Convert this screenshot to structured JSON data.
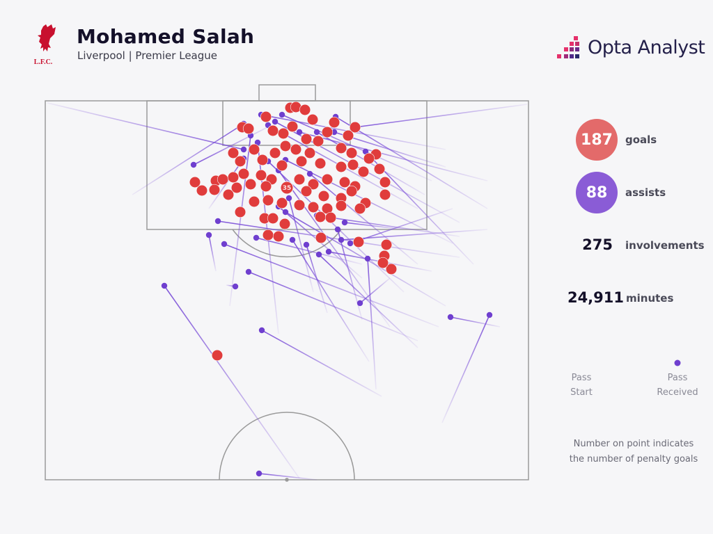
{
  "header": {
    "player": "Mohamed Salah",
    "subtitle": "Liverpool | Premier League",
    "club_crest_text": "L.F.C.",
    "brand": "Opta Analyst"
  },
  "stats": {
    "goals": {
      "value": "187",
      "label": "goals",
      "color": "#e36a6a"
    },
    "assists": {
      "value": "88",
      "label": "assists",
      "color": "#8a5cd6"
    },
    "involvements": {
      "value": "275",
      "label": "involvements"
    },
    "minutes": {
      "value": "24,911",
      "label": "minutes"
    }
  },
  "legend": {
    "start_line1": "Pass",
    "start_line2": "Start",
    "end_line1": "Pass",
    "end_line2": "Received"
  },
  "note": {
    "line1": "Number on point indicates",
    "line2": "the number of penalty goals"
  },
  "chart_data": {
    "type": "scatter",
    "description_units": "pitch metres: x across the pitch from left touchline, y from the goal line",
    "pitch": {
      "width": 69.4,
      "length": 54.5
    },
    "colors": {
      "goal": "#e03c3c",
      "assist": "#6f3fcf",
      "pitch_lines": "#9a9a9a"
    },
    "penalty_goals": {
      "x": 34.7,
      "y": 12.5,
      "count": "35"
    },
    "goals": [
      [
        35.2,
        1.0
      ],
      [
        36.0,
        0.9
      ],
      [
        37.3,
        1.3
      ],
      [
        31.7,
        2.3
      ],
      [
        38.4,
        2.7
      ],
      [
        41.5,
        3.1
      ],
      [
        44.5,
        3.8
      ],
      [
        28.3,
        3.8
      ],
      [
        29.2,
        4.0
      ],
      [
        35.5,
        3.7
      ],
      [
        32.7,
        4.3
      ],
      [
        34.2,
        4.7
      ],
      [
        40.5,
        4.5
      ],
      [
        43.5,
        5.0
      ],
      [
        37.5,
        5.5
      ],
      [
        39.2,
        5.8
      ],
      [
        27.0,
        7.5
      ],
      [
        30.0,
        7.0
      ],
      [
        33.0,
        7.5
      ],
      [
        34.5,
        6.5
      ],
      [
        36.0,
        7.0
      ],
      [
        38.0,
        7.5
      ],
      [
        42.5,
        6.8
      ],
      [
        44.0,
        7.5
      ],
      [
        47.5,
        7.7
      ],
      [
        46.5,
        8.3
      ],
      [
        28.0,
        8.7
      ],
      [
        31.2,
        8.5
      ],
      [
        34.0,
        9.3
      ],
      [
        36.8,
        8.7
      ],
      [
        39.5,
        9.0
      ],
      [
        42.5,
        9.5
      ],
      [
        44.2,
        9.2
      ],
      [
        45.7,
        10.2
      ],
      [
        48.0,
        9.8
      ],
      [
        21.5,
        11.7
      ],
      [
        22.5,
        12.9
      ],
      [
        24.5,
        11.5
      ],
      [
        25.5,
        11.3
      ],
      [
        27.0,
        11.0
      ],
      [
        28.5,
        10.5
      ],
      [
        31.0,
        10.7
      ],
      [
        32.5,
        11.3
      ],
      [
        36.5,
        11.3
      ],
      [
        38.5,
        12.0
      ],
      [
        40.5,
        11.3
      ],
      [
        43.0,
        11.7
      ],
      [
        44.5,
        12.3
      ],
      [
        48.8,
        11.7
      ],
      [
        24.3,
        12.8
      ],
      [
        26.3,
        13.5
      ],
      [
        27.5,
        12.5
      ],
      [
        29.5,
        12.0
      ],
      [
        31.7,
        12.3
      ],
      [
        37.5,
        13.0
      ],
      [
        40.0,
        13.7
      ],
      [
        42.5,
        14.0
      ],
      [
        44.0,
        13.0
      ],
      [
        48.8,
        13.5
      ],
      [
        28.0,
        16.0
      ],
      [
        30.0,
        14.5
      ],
      [
        32.0,
        14.3
      ],
      [
        34.0,
        14.7
      ],
      [
        36.5,
        15.0
      ],
      [
        38.5,
        15.3
      ],
      [
        40.5,
        15.5
      ],
      [
        42.5,
        15.1
      ],
      [
        46.0,
        14.7
      ],
      [
        45.2,
        15.5
      ],
      [
        31.5,
        16.9
      ],
      [
        32.7,
        16.9
      ],
      [
        34.4,
        17.7
      ],
      [
        39.5,
        16.7
      ],
      [
        41.0,
        16.8
      ],
      [
        32.0,
        19.3
      ],
      [
        33.5,
        19.5
      ],
      [
        39.6,
        19.7
      ],
      [
        45.0,
        20.3
      ],
      [
        49.0,
        20.7
      ],
      [
        48.7,
        22.3
      ],
      [
        49.7,
        24.2
      ],
      [
        48.5,
        23.3
      ],
      [
        24.7,
        36.6
      ]
    ],
    "assists": [
      {
        "start": [
          0.3,
          0.3
        ],
        "end": [
          28.5,
          7.0
        ]
      },
      {
        "start": [
          69.2,
          0.5
        ],
        "end": [
          44.5,
          3.8
        ]
      },
      {
        "start": [
          32.5,
          3.5
        ],
        "end": [
          21.3,
          9.2
        ]
      },
      {
        "start": [
          36.5,
          54.3
        ],
        "end": [
          17.1,
          26.6
        ]
      },
      {
        "start": [
          39.0,
          54.5
        ],
        "end": [
          30.7,
          53.6
        ]
      },
      {
        "start": [
          48.3,
          42.5
        ],
        "end": [
          31.1,
          33.0
        ]
      },
      {
        "start": [
          65.3,
          32.5
        ],
        "end": [
          58.2,
          31.1
        ]
      },
      {
        "start": [
          57.0,
          46.3
        ],
        "end": [
          63.8,
          30.8
        ]
      },
      {
        "start": [
          26.0,
          26.5
        ],
        "end": [
          27.3,
          26.7
        ]
      },
      {
        "start": [
          53.5,
          34.5
        ],
        "end": [
          29.2,
          24.6
        ]
      },
      {
        "start": [
          24.5,
          24.5
        ],
        "end": [
          23.5,
          19.3
        ]
      },
      {
        "start": [
          56.5,
          32.5
        ],
        "end": [
          25.7,
          20.6
        ]
      },
      {
        "start": [
          49.5,
          25.5
        ],
        "end": [
          45.2,
          29.1
        ]
      },
      {
        "start": [
          59.5,
          22.5
        ],
        "end": [
          24.8,
          17.3
        ]
      },
      {
        "start": [
          47.5,
          41.5
        ],
        "end": [
          46.3,
          22.7
        ]
      },
      {
        "start": [
          57.5,
          7.0
        ],
        "end": [
          31.0,
          2.0
        ]
      },
      {
        "start": [
          55.5,
          11.5
        ],
        "end": [
          34.0,
          2.0
        ]
      },
      {
        "start": [
          63.5,
          15.5
        ],
        "end": [
          41.7,
          2.3
        ]
      },
      {
        "start": [
          12.5,
          13.5
        ],
        "end": [
          28.5,
          3.3
        ]
      },
      {
        "start": [
          53.5,
          15.5
        ],
        "end": [
          32.0,
          3.5
        ]
      },
      {
        "start": [
          59.5,
          17.5
        ],
        "end": [
          33.0,
          3.0
        ]
      },
      {
        "start": [
          26.5,
          29.5
        ],
        "end": [
          29.5,
          5.0
        ]
      },
      {
        "start": [
          54.5,
          13.5
        ],
        "end": [
          39.0,
          4.5
        ]
      },
      {
        "start": [
          33.5,
          33.5
        ],
        "end": [
          30.5,
          6.0
        ]
      },
      {
        "start": [
          58.5,
          20.5
        ],
        "end": [
          34.5,
          8.5
        ]
      },
      {
        "start": [
          51.5,
          27.5
        ],
        "end": [
          32.0,
          8.7
        ]
      },
      {
        "start": [
          23.5,
          15.5
        ],
        "end": [
          28.5,
          8.3
        ]
      },
      {
        "start": [
          63.5,
          11.5
        ],
        "end": [
          36.5,
          4.5
        ]
      },
      {
        "start": [
          57.5,
          9.5
        ],
        "end": [
          41.5,
          4.5
        ]
      },
      {
        "start": [
          61.5,
          23.5
        ],
        "end": [
          46.0,
          7.3
        ]
      },
      {
        "start": [
          49.5,
          32.5
        ],
        "end": [
          33.5,
          10.0
        ]
      },
      {
        "start": [
          53.5,
          23.5
        ],
        "end": [
          38.0,
          10.5
        ]
      },
      {
        "start": [
          38.5,
          27.5
        ],
        "end": [
          35.0,
          14.0
        ]
      },
      {
        "start": [
          45.5,
          25.5
        ],
        "end": [
          33.5,
          15.2
        ]
      },
      {
        "start": [
          57.5,
          29.5
        ],
        "end": [
          34.5,
          16.0
        ]
      },
      {
        "start": [
          59.5,
          19.5
        ],
        "end": [
          39.0,
          16.5
        ]
      },
      {
        "start": [
          45.5,
          31.5
        ],
        "end": [
          42.0,
          18.5
        ]
      },
      {
        "start": [
          51.5,
          18.5
        ],
        "end": [
          43.0,
          17.5
        ]
      },
      {
        "start": [
          40.5,
          30.5
        ],
        "end": [
          37.5,
          20.7
        ]
      },
      {
        "start": [
          53.5,
          35.5
        ],
        "end": [
          39.3,
          22.1
        ]
      },
      {
        "start": [
          55.5,
          24.5
        ],
        "end": [
          40.7,
          21.7
        ]
      },
      {
        "start": [
          45.5,
          23.5
        ],
        "end": [
          30.3,
          19.7
        ]
      },
      {
        "start": [
          46.5,
          37.5
        ],
        "end": [
          35.5,
          20.0
        ]
      },
      {
        "start": [
          58.5,
          15.5
        ],
        "end": [
          43.8,
          20.5
        ]
      },
      {
        "start": [
          63.5,
          18.5
        ],
        "end": [
          42.5,
          20.0
        ]
      }
    ]
  }
}
